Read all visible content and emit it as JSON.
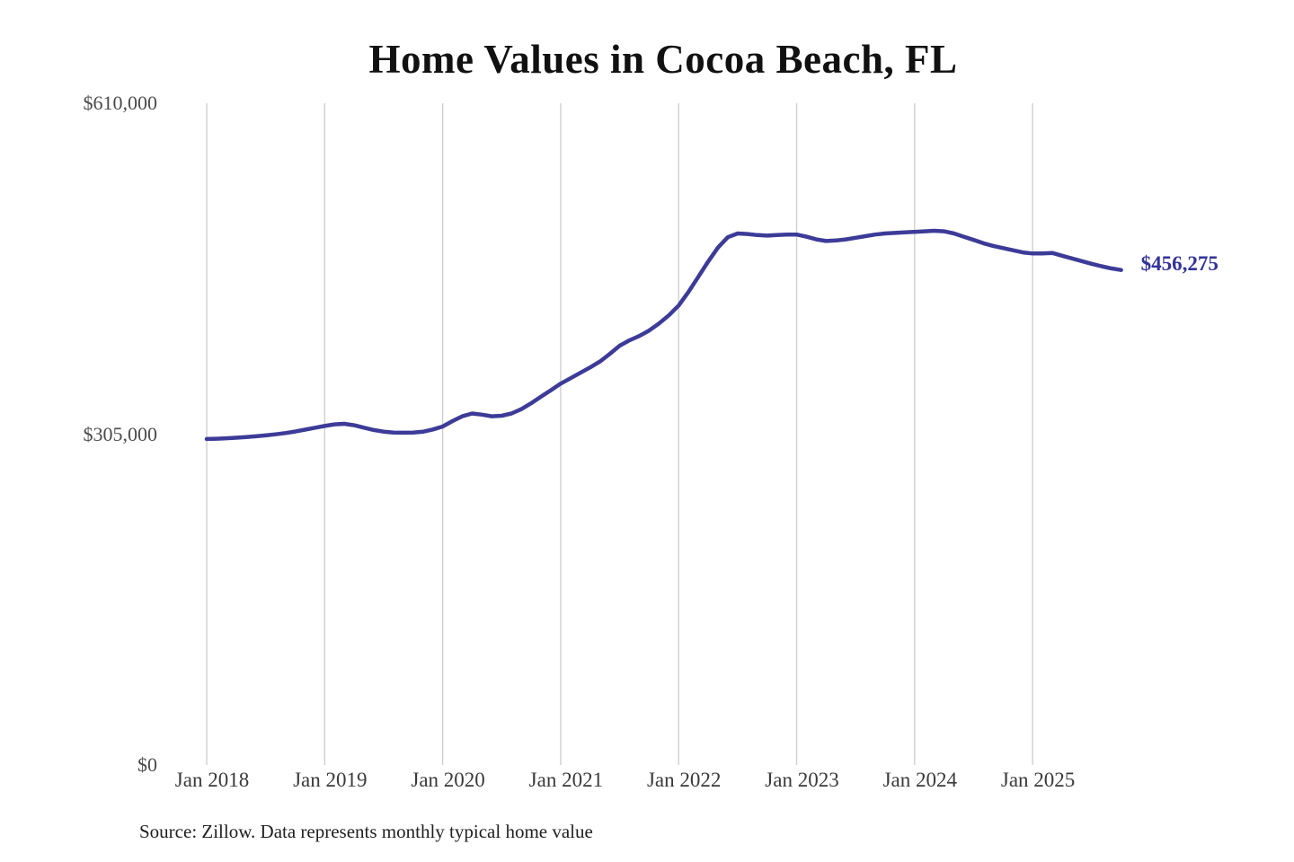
{
  "title": "Home Values in Cocoa Beach, FL",
  "source_note": "Source: Zillow. Data represents monthly typical home value",
  "colors": {
    "line": "#3d3b98",
    "final_label": "#333399",
    "gridline": "#cccccc",
    "y_label": "#4a4a4a",
    "x_label": "#3a3a3a",
    "title": "#111111",
    "source": "#1f1f1f",
    "background": "#ffffff"
  },
  "chart_data": {
    "type": "line",
    "title": "Home Values in Cocoa Beach, FL",
    "xlabel": "",
    "ylabel": "",
    "ylim": [
      0,
      610000
    ],
    "grid": "vertical-only",
    "legend": "none",
    "x_unit": "month",
    "x_ticks": [
      {
        "label": "Jan 2018",
        "month_index": 0
      },
      {
        "label": "Jan 2019",
        "month_index": 12
      },
      {
        "label": "Jan 2020",
        "month_index": 24
      },
      {
        "label": "Jan 2021",
        "month_index": 36
      },
      {
        "label": "Jan 2022",
        "month_index": 48
      },
      {
        "label": "Jan 2023",
        "month_index": 60
      },
      {
        "label": "Jan 2024",
        "month_index": 72
      },
      {
        "label": "Jan 2025",
        "month_index": 84
      }
    ],
    "y_ticks": [
      {
        "label": "$0",
        "value": 0
      },
      {
        "label": "$305,000",
        "value": 305000
      },
      {
        "label": "$610,000",
        "value": 610000
      }
    ],
    "final_value": 456275,
    "final_value_label": "$456,275",
    "series": [
      {
        "name": "Monthly typical home value",
        "start": "2018-01",
        "end": "2025-10",
        "values": [
          300500,
          300800,
          301200,
          301700,
          302300,
          303000,
          303800,
          304800,
          306000,
          307400,
          309100,
          310900,
          312500,
          314000,
          314500,
          313200,
          311000,
          308800,
          307300,
          306500,
          306300,
          306500,
          307200,
          309300,
          312000,
          317000,
          321500,
          324000,
          323000,
          321500,
          322000,
          324000,
          328000,
          333500,
          339500,
          345500,
          351500,
          356500,
          361500,
          366500,
          372000,
          379000,
          386500,
          391500,
          395500,
          400500,
          407000,
          414500,
          423500,
          436000,
          450000,
          464000,
          477000,
          486500,
          490000,
          489500,
          488500,
          488000,
          488500,
          489000,
          489000,
          487000,
          484500,
          483000,
          483500,
          484500,
          486000,
          487500,
          489000,
          490000,
          490500,
          491000,
          491500,
          492000,
          492500,
          492000,
          490000,
          487000,
          484000,
          481000,
          478500,
          476500,
          474500,
          472500,
          471500,
          471500,
          472000,
          469500,
          467000,
          464500,
          462000,
          459800,
          457800,
          456275
        ]
      }
    ]
  }
}
